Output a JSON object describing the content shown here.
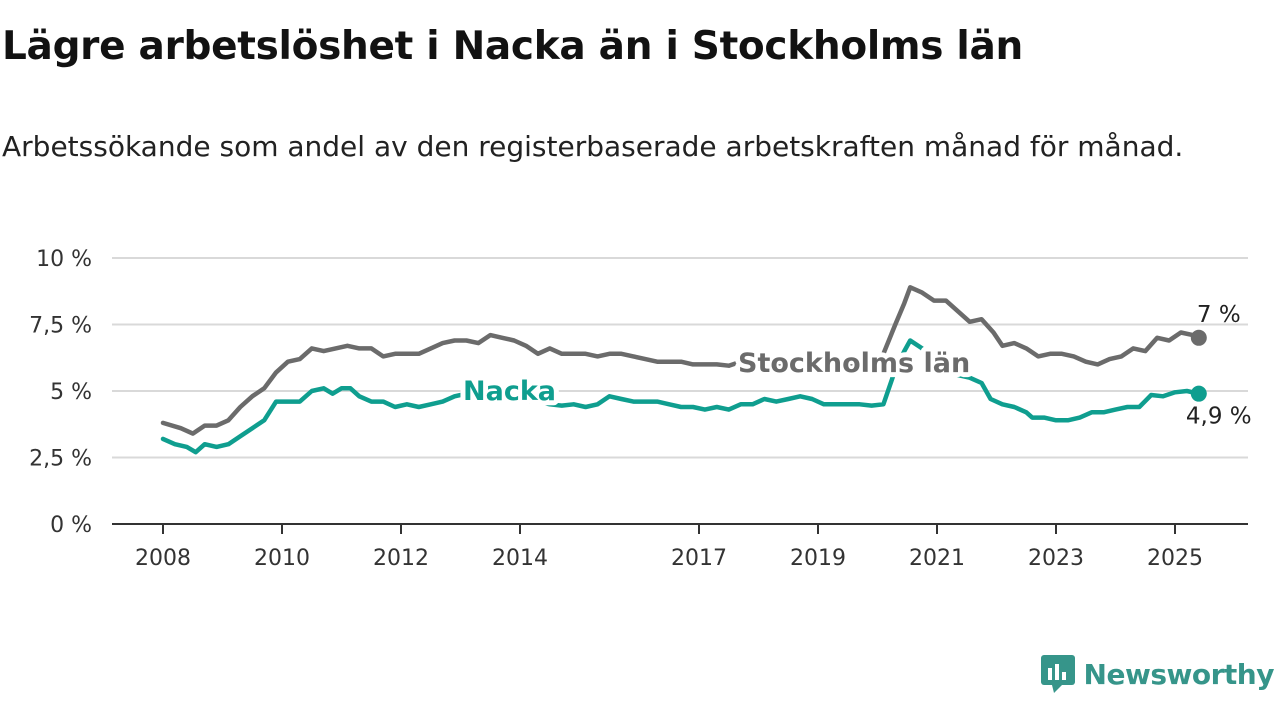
{
  "title": "Lägre arbetslöshet i Nacka än i Stockholms län",
  "subtitle": "Arbetssökande som andel av den registerbaserade arbetskraften månad för månad.",
  "brand": "Newsworthy",
  "colors": {
    "stockholm": "#6b6b6b",
    "nacka": "#0f9e8f",
    "grid": "#d9d9d9",
    "axis": "#333333",
    "brand": "#36958a"
  },
  "chart_data": {
    "type": "line",
    "title": "Lägre arbetslöshet i Nacka än i Stockholms län",
    "subtitle": "Arbetssökande som andel av den registerbaserade arbetskraften månad för månad.",
    "ylim": [
      0,
      10
    ],
    "xlim": [
      2007.6,
      2026.2
    ],
    "yticks": [
      {
        "value": 0,
        "label": "0 %"
      },
      {
        "value": 2.5,
        "label": "2,5 %"
      },
      {
        "value": 5,
        "label": "5 %"
      },
      {
        "value": 7.5,
        "label": "7,5 %"
      },
      {
        "value": 10,
        "label": "10 %"
      }
    ],
    "xticks": [
      {
        "value": 2008,
        "label": "2008"
      },
      {
        "value": 2010,
        "label": "2010"
      },
      {
        "value": 2012,
        "label": "2012"
      },
      {
        "value": 2014,
        "label": "2014"
      },
      {
        "value": 2017,
        "label": "2017"
      },
      {
        "value": 2019,
        "label": "2019"
      },
      {
        "value": 2021,
        "label": "2021"
      },
      {
        "value": 2023,
        "label": "2023"
      },
      {
        "value": 2025,
        "label": "2025"
      }
    ],
    "grid": true,
    "legend": "direct labels on lines",
    "series": [
      {
        "name": "Stockholms län",
        "end_label": "7 %",
        "points": [
          [
            2008.0,
            3.8
          ],
          [
            2008.3,
            3.6
          ],
          [
            2008.5,
            3.4
          ],
          [
            2008.7,
            3.7
          ],
          [
            2008.9,
            3.7
          ],
          [
            2009.1,
            3.9
          ],
          [
            2009.3,
            4.4
          ],
          [
            2009.5,
            4.8
          ],
          [
            2009.7,
            5.1
          ],
          [
            2009.9,
            5.7
          ],
          [
            2010.1,
            6.1
          ],
          [
            2010.3,
            6.2
          ],
          [
            2010.5,
            6.6
          ],
          [
            2010.7,
            6.5
          ],
          [
            2010.9,
            6.6
          ],
          [
            2011.1,
            6.7
          ],
          [
            2011.3,
            6.6
          ],
          [
            2011.5,
            6.6
          ],
          [
            2011.7,
            6.3
          ],
          [
            2011.9,
            6.4
          ],
          [
            2012.1,
            6.4
          ],
          [
            2012.3,
            6.4
          ],
          [
            2012.5,
            6.6
          ],
          [
            2012.7,
            6.8
          ],
          [
            2012.9,
            6.9
          ],
          [
            2013.1,
            6.9
          ],
          [
            2013.3,
            6.8
          ],
          [
            2013.5,
            7.1
          ],
          [
            2013.7,
            7.0
          ],
          [
            2013.9,
            6.9
          ],
          [
            2014.1,
            6.7
          ],
          [
            2014.3,
            6.4
          ],
          [
            2014.5,
            6.6
          ],
          [
            2014.7,
            6.4
          ],
          [
            2014.9,
            6.4
          ],
          [
            2015.1,
            6.4
          ],
          [
            2015.3,
            6.3
          ],
          [
            2015.5,
            6.4
          ],
          [
            2015.7,
            6.4
          ],
          [
            2015.9,
            6.3
          ],
          [
            2016.1,
            6.2
          ],
          [
            2016.3,
            6.1
          ],
          [
            2016.5,
            6.1
          ],
          [
            2016.7,
            6.1
          ],
          [
            2016.9,
            6.0
          ],
          [
            2017.1,
            6.0
          ],
          [
            2017.3,
            6.0
          ],
          [
            2017.5,
            5.95
          ],
          [
            2017.7,
            6.1
          ],
          [
            2017.9,
            6.1
          ],
          [
            2018.1,
            6.0
          ],
          [
            2018.3,
            6.0
          ],
          [
            2018.5,
            6.0
          ],
          [
            2018.7,
            6.1
          ],
          [
            2018.9,
            6.0
          ],
          [
            2019.1,
            6.0
          ],
          [
            2019.3,
            6.0
          ],
          [
            2019.5,
            6.0
          ],
          [
            2019.7,
            6.1
          ],
          [
            2019.9,
            6.15
          ],
          [
            2020.1,
            6.4
          ],
          [
            2020.3,
            7.5
          ],
          [
            2020.45,
            8.3
          ],
          [
            2020.55,
            8.9
          ],
          [
            2020.75,
            8.7
          ],
          [
            2020.95,
            8.4
          ],
          [
            2021.15,
            8.4
          ],
          [
            2021.35,
            8.0
          ],
          [
            2021.55,
            7.6
          ],
          [
            2021.75,
            7.7
          ],
          [
            2021.95,
            7.2
          ],
          [
            2022.1,
            6.7
          ],
          [
            2022.3,
            6.8
          ],
          [
            2022.5,
            6.6
          ],
          [
            2022.7,
            6.3
          ],
          [
            2022.9,
            6.4
          ],
          [
            2023.1,
            6.4
          ],
          [
            2023.3,
            6.3
          ],
          [
            2023.5,
            6.1
          ],
          [
            2023.7,
            6.0
          ],
          [
            2023.9,
            6.2
          ],
          [
            2024.1,
            6.3
          ],
          [
            2024.3,
            6.6
          ],
          [
            2024.5,
            6.5
          ],
          [
            2024.7,
            7.0
          ],
          [
            2024.9,
            6.9
          ],
          [
            2025.1,
            7.2
          ],
          [
            2025.3,
            7.1
          ],
          [
            2025.4,
            7.0
          ]
        ]
      },
      {
        "name": "Nacka",
        "end_label": "4,9 %",
        "points": [
          [
            2008.0,
            3.2
          ],
          [
            2008.2,
            3.0
          ],
          [
            2008.4,
            2.9
          ],
          [
            2008.55,
            2.7
          ],
          [
            2008.7,
            3.0
          ],
          [
            2008.9,
            2.9
          ],
          [
            2009.1,
            3.0
          ],
          [
            2009.3,
            3.3
          ],
          [
            2009.5,
            3.6
          ],
          [
            2009.7,
            3.9
          ],
          [
            2009.9,
            4.6
          ],
          [
            2010.1,
            4.6
          ],
          [
            2010.3,
            4.6
          ],
          [
            2010.5,
            5.0
          ],
          [
            2010.7,
            5.1
          ],
          [
            2010.85,
            4.9
          ],
          [
            2011.0,
            5.1
          ],
          [
            2011.15,
            5.1
          ],
          [
            2011.3,
            4.8
          ],
          [
            2011.5,
            4.6
          ],
          [
            2011.7,
            4.6
          ],
          [
            2011.9,
            4.4
          ],
          [
            2012.1,
            4.5
          ],
          [
            2012.3,
            4.4
          ],
          [
            2012.5,
            4.5
          ],
          [
            2012.7,
            4.6
          ],
          [
            2012.9,
            4.8
          ],
          [
            2013.1,
            4.9
          ],
          [
            2013.3,
            5.0
          ],
          [
            2013.5,
            4.95
          ],
          [
            2013.7,
            4.9
          ],
          [
            2013.9,
            4.8
          ],
          [
            2014.1,
            4.6
          ],
          [
            2014.3,
            4.6
          ],
          [
            2014.5,
            4.5
          ],
          [
            2014.7,
            4.45
          ],
          [
            2014.9,
            4.5
          ],
          [
            2015.1,
            4.4
          ],
          [
            2015.3,
            4.5
          ],
          [
            2015.5,
            4.8
          ],
          [
            2015.7,
            4.7
          ],
          [
            2015.9,
            4.6
          ],
          [
            2016.1,
            4.6
          ],
          [
            2016.3,
            4.6
          ],
          [
            2016.5,
            4.5
          ],
          [
            2016.7,
            4.4
          ],
          [
            2016.9,
            4.4
          ],
          [
            2017.1,
            4.3
          ],
          [
            2017.3,
            4.4
          ],
          [
            2017.5,
            4.3
          ],
          [
            2017.7,
            4.5
          ],
          [
            2017.9,
            4.5
          ],
          [
            2018.1,
            4.7
          ],
          [
            2018.3,
            4.6
          ],
          [
            2018.5,
            4.7
          ],
          [
            2018.7,
            4.8
          ],
          [
            2018.9,
            4.7
          ],
          [
            2019.1,
            4.5
          ],
          [
            2019.3,
            4.5
          ],
          [
            2019.5,
            4.5
          ],
          [
            2019.7,
            4.5
          ],
          [
            2019.9,
            4.45
          ],
          [
            2020.1,
            4.5
          ],
          [
            2020.3,
            5.8
          ],
          [
            2020.45,
            6.5
          ],
          [
            2020.55,
            6.9
          ],
          [
            2020.75,
            6.6
          ],
          [
            2020.95,
            6.2
          ],
          [
            2021.15,
            6.0
          ],
          [
            2021.35,
            5.6
          ],
          [
            2021.55,
            5.5
          ],
          [
            2021.75,
            5.3
          ],
          [
            2021.9,
            4.7
          ],
          [
            2022.1,
            4.5
          ],
          [
            2022.3,
            4.4
          ],
          [
            2022.5,
            4.2
          ],
          [
            2022.6,
            4.0
          ],
          [
            2022.8,
            4.0
          ],
          [
            2023.0,
            3.9
          ],
          [
            2023.2,
            3.9
          ],
          [
            2023.4,
            4.0
          ],
          [
            2023.6,
            4.2
          ],
          [
            2023.8,
            4.2
          ],
          [
            2024.0,
            4.3
          ],
          [
            2024.2,
            4.4
          ],
          [
            2024.4,
            4.4
          ],
          [
            2024.6,
            4.85
          ],
          [
            2024.8,
            4.8
          ],
          [
            2025.0,
            4.95
          ],
          [
            2025.2,
            5.0
          ],
          [
            2025.4,
            4.9
          ]
        ]
      }
    ]
  }
}
